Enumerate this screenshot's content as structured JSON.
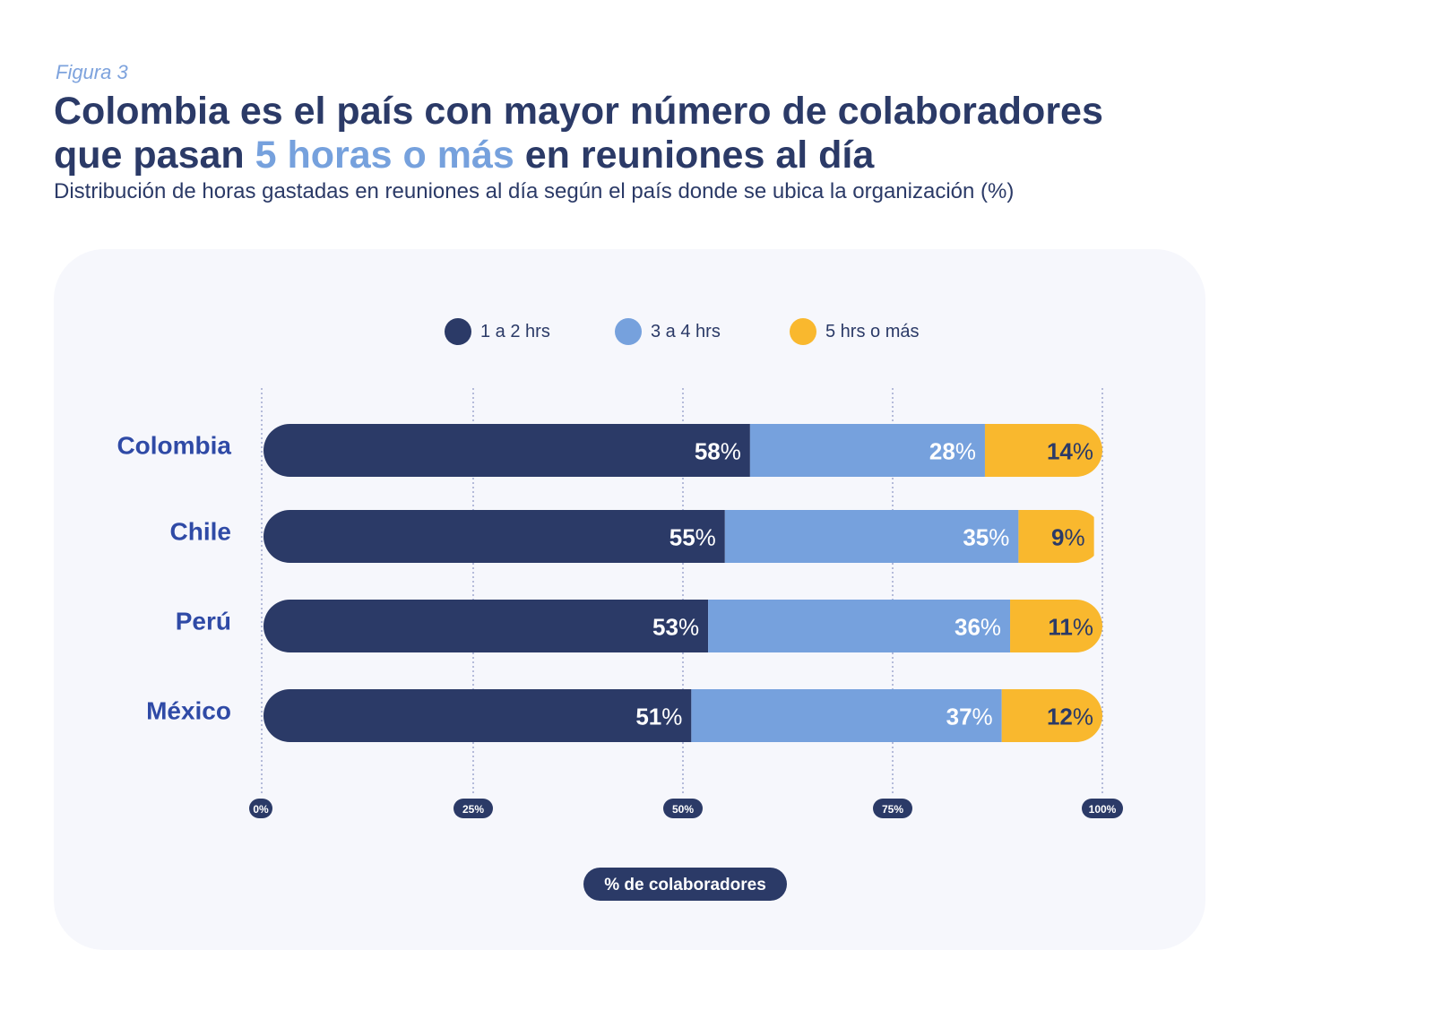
{
  "figure_label": "Figura 3",
  "title": {
    "part1": "Colombia es el país con mayor número de colaboradores",
    "part2": "que pasan ",
    "highlight": "5 horas o más",
    "part3": " en reuniones al día"
  },
  "subtitle": "Distribución de horas gastadas en reuniones al día según el país donde se ubica la organización (%)",
  "colors": {
    "series1": "#2b3a67",
    "series2": "#76a1dd",
    "series3": "#f9b82e",
    "country_label": "#2f4aa6",
    "grid": "#8a94c4"
  },
  "chart_data": {
    "type": "bar",
    "orientation": "horizontal",
    "stacked": true,
    "categories": [
      "Colombia",
      "Chile",
      "Perú",
      "México"
    ],
    "series": [
      {
        "name": "1 a 2 hrs",
        "values": [
          58,
          55,
          53,
          51
        ]
      },
      {
        "name": "3 a 4 hrs",
        "values": [
          28,
          35,
          36,
          37
        ]
      },
      {
        "name": "5 hrs o más",
        "values": [
          14,
          9,
          11,
          12
        ]
      }
    ],
    "value_suffix": "%",
    "xlim": [
      0,
      100
    ],
    "xticks": [
      0,
      25,
      50,
      75,
      100
    ],
    "xtick_labels": [
      "0%",
      "25%",
      "50%",
      "75%",
      "100%"
    ],
    "xlabel": "% de colaboradores",
    "legend_position": "top",
    "grid": true
  }
}
